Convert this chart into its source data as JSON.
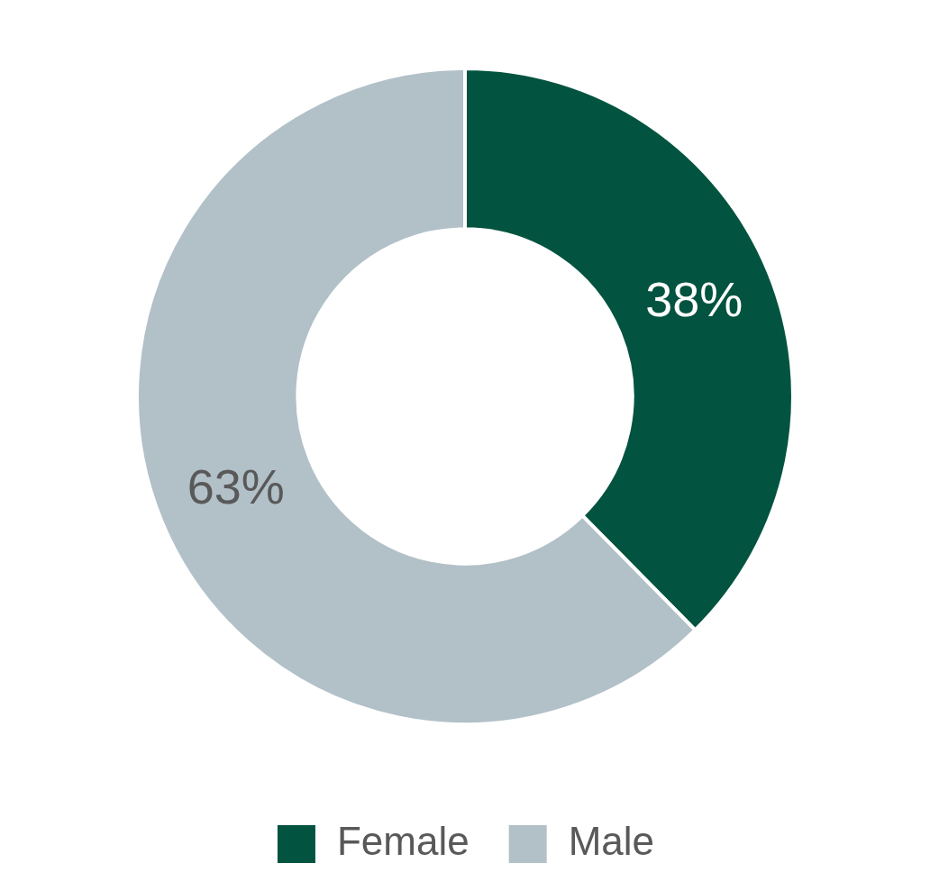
{
  "chart_data": {
    "type": "donut",
    "categories": [
      "Female",
      "Male"
    ],
    "values": [
      38,
      63
    ],
    "colors": [
      "#02533f",
      "#b2c0c8"
    ],
    "value_labels": [
      "38%",
      "63%"
    ],
    "legend": "bottom"
  }
}
